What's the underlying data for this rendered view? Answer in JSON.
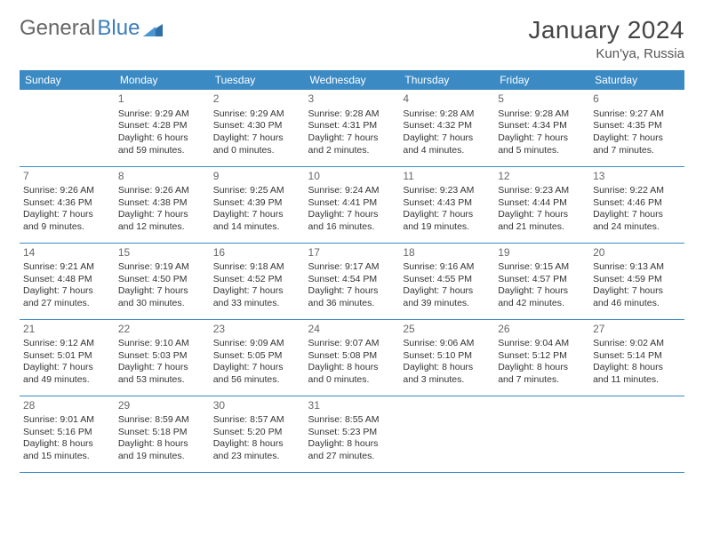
{
  "brand": {
    "part1": "General",
    "part2": "Blue"
  },
  "title": "January 2024",
  "location": "Kun'ya, Russia",
  "colors": {
    "header_bg": "#3b8ac4",
    "header_fg": "#ffffff",
    "border": "#3b8ac4",
    "brand_blue": "#3b7dbb",
    "text": "#333333",
    "daynum": "#666666",
    "bg": "#ffffff"
  },
  "weekdays": [
    "Sunday",
    "Monday",
    "Tuesday",
    "Wednesday",
    "Thursday",
    "Friday",
    "Saturday"
  ],
  "cells": [
    {
      "blank": true
    },
    {
      "day": "1",
      "sunrise": "Sunrise: 9:29 AM",
      "sunset": "Sunset: 4:28 PM",
      "dl1": "Daylight: 6 hours",
      "dl2": "and 59 minutes."
    },
    {
      "day": "2",
      "sunrise": "Sunrise: 9:29 AM",
      "sunset": "Sunset: 4:30 PM",
      "dl1": "Daylight: 7 hours",
      "dl2": "and 0 minutes."
    },
    {
      "day": "3",
      "sunrise": "Sunrise: 9:28 AM",
      "sunset": "Sunset: 4:31 PM",
      "dl1": "Daylight: 7 hours",
      "dl2": "and 2 minutes."
    },
    {
      "day": "4",
      "sunrise": "Sunrise: 9:28 AM",
      "sunset": "Sunset: 4:32 PM",
      "dl1": "Daylight: 7 hours",
      "dl2": "and 4 minutes."
    },
    {
      "day": "5",
      "sunrise": "Sunrise: 9:28 AM",
      "sunset": "Sunset: 4:34 PM",
      "dl1": "Daylight: 7 hours",
      "dl2": "and 5 minutes."
    },
    {
      "day": "6",
      "sunrise": "Sunrise: 9:27 AM",
      "sunset": "Sunset: 4:35 PM",
      "dl1": "Daylight: 7 hours",
      "dl2": "and 7 minutes."
    },
    {
      "day": "7",
      "sunrise": "Sunrise: 9:26 AM",
      "sunset": "Sunset: 4:36 PM",
      "dl1": "Daylight: 7 hours",
      "dl2": "and 9 minutes."
    },
    {
      "day": "8",
      "sunrise": "Sunrise: 9:26 AM",
      "sunset": "Sunset: 4:38 PM",
      "dl1": "Daylight: 7 hours",
      "dl2": "and 12 minutes."
    },
    {
      "day": "9",
      "sunrise": "Sunrise: 9:25 AM",
      "sunset": "Sunset: 4:39 PM",
      "dl1": "Daylight: 7 hours",
      "dl2": "and 14 minutes."
    },
    {
      "day": "10",
      "sunrise": "Sunrise: 9:24 AM",
      "sunset": "Sunset: 4:41 PM",
      "dl1": "Daylight: 7 hours",
      "dl2": "and 16 minutes."
    },
    {
      "day": "11",
      "sunrise": "Sunrise: 9:23 AM",
      "sunset": "Sunset: 4:43 PM",
      "dl1": "Daylight: 7 hours",
      "dl2": "and 19 minutes."
    },
    {
      "day": "12",
      "sunrise": "Sunrise: 9:23 AM",
      "sunset": "Sunset: 4:44 PM",
      "dl1": "Daylight: 7 hours",
      "dl2": "and 21 minutes."
    },
    {
      "day": "13",
      "sunrise": "Sunrise: 9:22 AM",
      "sunset": "Sunset: 4:46 PM",
      "dl1": "Daylight: 7 hours",
      "dl2": "and 24 minutes."
    },
    {
      "day": "14",
      "sunrise": "Sunrise: 9:21 AM",
      "sunset": "Sunset: 4:48 PM",
      "dl1": "Daylight: 7 hours",
      "dl2": "and 27 minutes."
    },
    {
      "day": "15",
      "sunrise": "Sunrise: 9:19 AM",
      "sunset": "Sunset: 4:50 PM",
      "dl1": "Daylight: 7 hours",
      "dl2": "and 30 minutes."
    },
    {
      "day": "16",
      "sunrise": "Sunrise: 9:18 AM",
      "sunset": "Sunset: 4:52 PM",
      "dl1": "Daylight: 7 hours",
      "dl2": "and 33 minutes."
    },
    {
      "day": "17",
      "sunrise": "Sunrise: 9:17 AM",
      "sunset": "Sunset: 4:54 PM",
      "dl1": "Daylight: 7 hours",
      "dl2": "and 36 minutes."
    },
    {
      "day": "18",
      "sunrise": "Sunrise: 9:16 AM",
      "sunset": "Sunset: 4:55 PM",
      "dl1": "Daylight: 7 hours",
      "dl2": "and 39 minutes."
    },
    {
      "day": "19",
      "sunrise": "Sunrise: 9:15 AM",
      "sunset": "Sunset: 4:57 PM",
      "dl1": "Daylight: 7 hours",
      "dl2": "and 42 minutes."
    },
    {
      "day": "20",
      "sunrise": "Sunrise: 9:13 AM",
      "sunset": "Sunset: 4:59 PM",
      "dl1": "Daylight: 7 hours",
      "dl2": "and 46 minutes."
    },
    {
      "day": "21",
      "sunrise": "Sunrise: 9:12 AM",
      "sunset": "Sunset: 5:01 PM",
      "dl1": "Daylight: 7 hours",
      "dl2": "and 49 minutes."
    },
    {
      "day": "22",
      "sunrise": "Sunrise: 9:10 AM",
      "sunset": "Sunset: 5:03 PM",
      "dl1": "Daylight: 7 hours",
      "dl2": "and 53 minutes."
    },
    {
      "day": "23",
      "sunrise": "Sunrise: 9:09 AM",
      "sunset": "Sunset: 5:05 PM",
      "dl1": "Daylight: 7 hours",
      "dl2": "and 56 minutes."
    },
    {
      "day": "24",
      "sunrise": "Sunrise: 9:07 AM",
      "sunset": "Sunset: 5:08 PM",
      "dl1": "Daylight: 8 hours",
      "dl2": "and 0 minutes."
    },
    {
      "day": "25",
      "sunrise": "Sunrise: 9:06 AM",
      "sunset": "Sunset: 5:10 PM",
      "dl1": "Daylight: 8 hours",
      "dl2": "and 3 minutes."
    },
    {
      "day": "26",
      "sunrise": "Sunrise: 9:04 AM",
      "sunset": "Sunset: 5:12 PM",
      "dl1": "Daylight: 8 hours",
      "dl2": "and 7 minutes."
    },
    {
      "day": "27",
      "sunrise": "Sunrise: 9:02 AM",
      "sunset": "Sunset: 5:14 PM",
      "dl1": "Daylight: 8 hours",
      "dl2": "and 11 minutes."
    },
    {
      "day": "28",
      "sunrise": "Sunrise: 9:01 AM",
      "sunset": "Sunset: 5:16 PM",
      "dl1": "Daylight: 8 hours",
      "dl2": "and 15 minutes."
    },
    {
      "day": "29",
      "sunrise": "Sunrise: 8:59 AM",
      "sunset": "Sunset: 5:18 PM",
      "dl1": "Daylight: 8 hours",
      "dl2": "and 19 minutes."
    },
    {
      "day": "30",
      "sunrise": "Sunrise: 8:57 AM",
      "sunset": "Sunset: 5:20 PM",
      "dl1": "Daylight: 8 hours",
      "dl2": "and 23 minutes."
    },
    {
      "day": "31",
      "sunrise": "Sunrise: 8:55 AM",
      "sunset": "Sunset: 5:23 PM",
      "dl1": "Daylight: 8 hours",
      "dl2": "and 27 minutes."
    },
    {
      "blank": true
    },
    {
      "blank": true
    },
    {
      "blank": true
    }
  ]
}
